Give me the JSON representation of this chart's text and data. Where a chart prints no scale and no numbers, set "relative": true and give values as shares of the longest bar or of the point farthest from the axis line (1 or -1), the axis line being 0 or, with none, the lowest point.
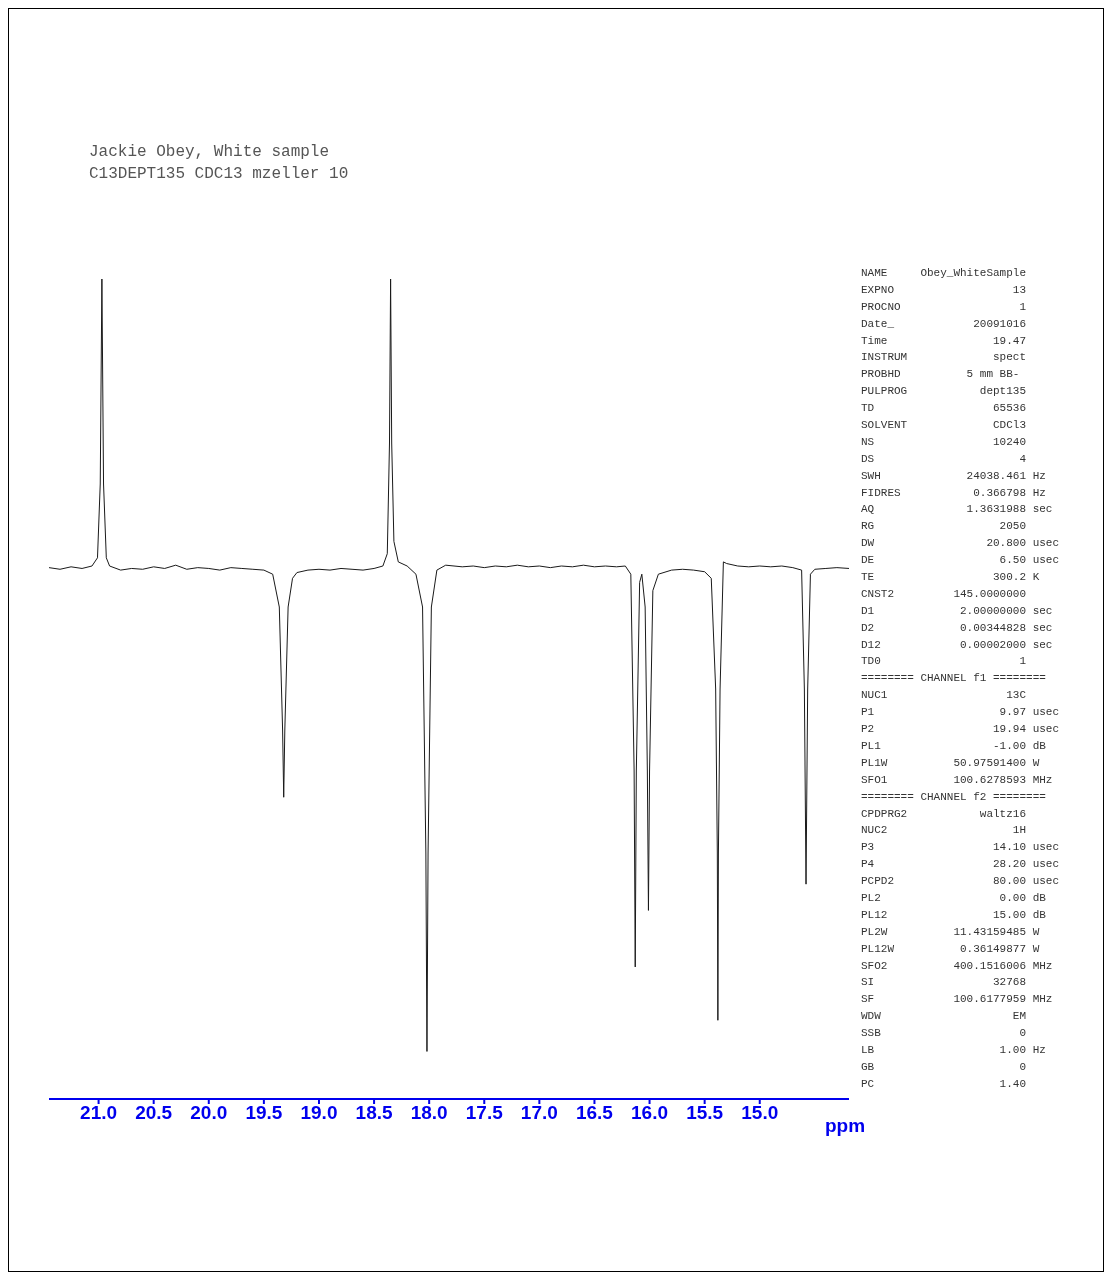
{
  "chart_data": {
    "type": "line",
    "relative": true,
    "title": "Jackie Obey, White sample",
    "subtitle": "C13DEPT135 CDC13 mzeller 10",
    "xlabel": "ppm",
    "xlim": [
      21.45,
      14.19
    ],
    "xticks": [
      {
        "value": 21,
        "label": "21.0"
      },
      20.5,
      {
        "value": 20,
        "label": "20.0"
      },
      19.5,
      {
        "value": 19,
        "label": "19.0"
      },
      18.5,
      {
        "value": 18,
        "label": "18.0"
      },
      17.5,
      {
        "value": 17,
        "label": "17.0"
      },
      16.5,
      {
        "value": 16,
        "label": "16.0"
      },
      15.5,
      {
        "value": 15,
        "label": "15.0"
      }
    ],
    "marker": "none",
    "line_style": "solid",
    "series": [
      {
        "color": "#1a1a1a",
        "x": [
          21.45,
          21.35,
          21.25,
          21.15,
          21.06,
          21.01,
          20.985,
          20.97,
          20.955,
          20.93,
          20.9,
          20.8,
          20.7,
          20.6,
          20.5,
          20.4,
          20.3,
          20.2,
          20.1,
          20.0,
          19.9,
          19.8,
          19.7,
          19.6,
          19.5,
          19.42,
          19.36,
          19.33,
          19.32,
          19.31,
          19.28,
          19.24,
          19.2,
          19.1,
          19.0,
          18.9,
          18.8,
          18.7,
          18.6,
          18.5,
          18.42,
          18.38,
          18.36,
          18.35,
          18.34,
          18.32,
          18.28,
          18.2,
          18.12,
          18.06,
          18.03,
          18.02,
          18.01,
          17.98,
          17.93,
          17.85,
          17.7,
          17.6,
          17.5,
          17.4,
          17.3,
          17.2,
          17.1,
          17.0,
          16.9,
          16.8,
          16.7,
          16.6,
          16.5,
          16.4,
          16.3,
          16.22,
          16.17,
          16.14,
          16.13,
          16.12,
          16.09,
          16.07,
          16.04,
          16.02,
          16.01,
          16.0,
          15.97,
          15.92,
          15.8,
          15.7,
          15.6,
          15.5,
          15.44,
          15.4,
          15.385,
          15.38,
          15.375,
          15.36,
          15.33,
          15.3,
          15.2,
          15.1,
          15.0,
          14.9,
          14.8,
          14.7,
          14.62,
          14.595,
          14.58,
          14.565,
          14.54,
          14.5,
          14.4,
          14.3,
          14.19
        ],
        "values": [
          0.648,
          0.646,
          0.649,
          0.647,
          0.65,
          0.66,
          0.75,
          1.0,
          0.75,
          0.66,
          0.65,
          0.645,
          0.647,
          0.646,
          0.649,
          0.647,
          0.651,
          0.646,
          0.648,
          0.647,
          0.645,
          0.648,
          0.647,
          0.646,
          0.645,
          0.64,
          0.6,
          0.45,
          0.368,
          0.45,
          0.6,
          0.635,
          0.642,
          0.645,
          0.646,
          0.645,
          0.647,
          0.646,
          0.645,
          0.647,
          0.65,
          0.665,
          0.8,
          1.0,
          0.8,
          0.68,
          0.655,
          0.65,
          0.64,
          0.6,
          0.3,
          0.058,
          0.3,
          0.6,
          0.645,
          0.651,
          0.649,
          0.65,
          0.648,
          0.65,
          0.649,
          0.651,
          0.649,
          0.65,
          0.648,
          0.65,
          0.649,
          0.651,
          0.649,
          0.65,
          0.649,
          0.65,
          0.64,
          0.4,
          0.161,
          0.4,
          0.63,
          0.64,
          0.6,
          0.4,
          0.23,
          0.4,
          0.62,
          0.64,
          0.645,
          0.646,
          0.645,
          0.643,
          0.635,
          0.5,
          0.3,
          0.096,
          0.3,
          0.5,
          0.655,
          0.653,
          0.65,
          0.649,
          0.65,
          0.649,
          0.65,
          0.648,
          0.645,
          0.5,
          0.262,
          0.5,
          0.64,
          0.646,
          0.647,
          0.648,
          0.647
        ]
      }
    ],
    "annotations": [
      "NAME     Obey_WhiteSample",
      "EXPNO                  13",
      "PROCNO                  1",
      "Date_            20091016",
      "Time                19.47",
      "INSTRUM             spect",
      "PROBHD          5 mm BB-",
      "PULPROG           dept135",
      "TD                  65536",
      "SOLVENT             CDCl3",
      "NS                  10240",
      "DS                      4",
      "SWH             24038.461 Hz",
      "FIDRES           0.366798 Hz",
      "AQ              1.3631988 sec",
      "RG                   2050",
      "DW                 20.800 usec",
      "DE                   6.50 usec",
      "TE                  300.2 K",
      "CNST2         145.0000000",
      "D1             2.00000000 sec",
      "D2             0.00344828 sec",
      "D12            0.00002000 sec",
      "TD0                     1",
      "======== CHANNEL f1 ========",
      "NUC1                  13C",
      "P1                   9.97 usec",
      "P2                  19.94 usec",
      "PL1                 -1.00 dB",
      "PL1W          50.97591400 W",
      "SFO1          100.6278593 MHz",
      "======== CHANNEL f2 ========",
      "CPDPRG2           waltz16",
      "NUC2                   1H",
      "P3                  14.10 usec",
      "P4                  28.20 usec",
      "PCPD2               80.00 usec",
      "PL2                  0.00 dB",
      "PL12                15.00 dB",
      "PL2W          11.43159485 W",
      "PL12W          0.36149877 W",
      "SFO2          400.1516006 MHz",
      "SI                  32768",
      "SF            100.6177959 MHz",
      "WDW                    EM",
      "SSB                     0",
      "LB                   1.00 Hz",
      "GB                      0",
      "PC                   1.40"
    ]
  }
}
